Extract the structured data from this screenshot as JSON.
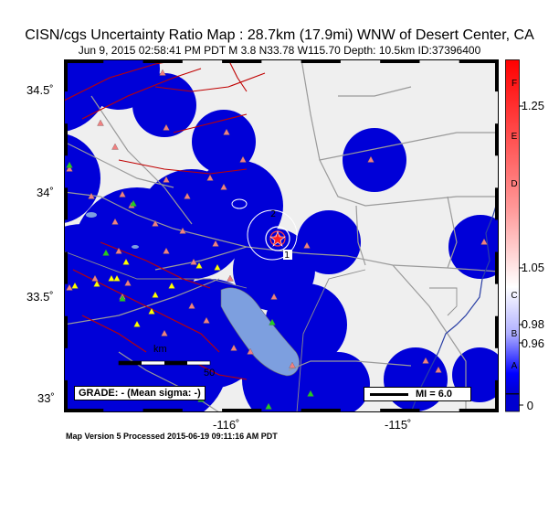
{
  "title": "CISN/cgs Uncertainty Ratio Map : 28.7km (17.9mi) WNW of Desert Center, CA",
  "subtitle": "Jun  9, 2015 02:58:41 PM PDT   M 3.8   N33.78 W115.70   Depth: 10.5km   ID:37396400",
  "latitude_labels": [
    "34.5˚",
    "34˚",
    "33.5˚",
    "33˚"
  ],
  "longitude_labels": [
    "-116˚",
    "-115˚"
  ],
  "colorbar": {
    "letters": [
      "F",
      "E",
      "D",
      "C",
      "B",
      "A"
    ],
    "values": [
      "1.25",
      "1.05",
      "0.98",
      "0.96",
      "0"
    ]
  },
  "contour_labels": [
    "2",
    "1"
  ],
  "scalebar": {
    "unit": "km",
    "max": "50"
  },
  "grade_text": "GRADE: - (Mean sigma: -)",
  "mi_text": "MI = 6.0",
  "footer": "Map Version 5 Processed 2015-06-19 09:11:16 AM PDT",
  "colors": {
    "land": "#efefef",
    "uncertainty_blob": "#0000d8",
    "lake": "#7d9fdf",
    "fault": "#c00000",
    "road": "#999999",
    "station_red": "#f08080",
    "station_yellow": "#ffff00",
    "station_green": "#22cc22",
    "river": "#2a3fa5"
  }
}
